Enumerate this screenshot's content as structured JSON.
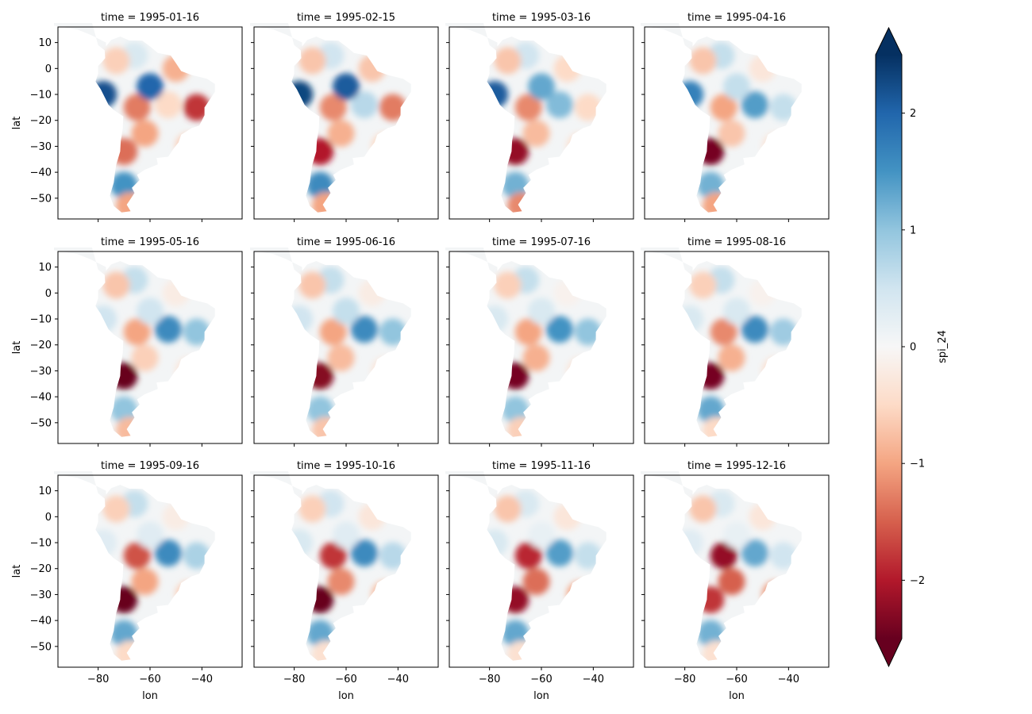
{
  "chart_data": {
    "type": "heatmap",
    "description_kind": "facet grid of gridded maps (3 rows x 4 columns)",
    "variable": "spi_24",
    "xlabel": "lon",
    "ylabel": "lat",
    "xticks": [
      -80,
      -60,
      -40
    ],
    "yticks": [
      10,
      0,
      -10,
      -20,
      -30,
      -40,
      -50
    ],
    "xlim": [
      -95.5,
      -24.5
    ],
    "ylim": [
      -58,
      16
    ],
    "colormap": "RdBu",
    "colorbar": {
      "label": "spi_24",
      "vmin": -2.5,
      "vmax": 2.5,
      "ticks": [
        2,
        1,
        0,
        -1,
        -2
      ],
      "tick_labels": [
        "2",
        "1",
        "0",
        "−1",
        "−2"
      ],
      "extend": "both",
      "placement": "right"
    },
    "panels": [
      {
        "title": "time = 1995-01-16"
      },
      {
        "title": "time = 1995-02-15"
      },
      {
        "title": "time = 1995-03-16"
      },
      {
        "title": "time = 1995-04-16"
      },
      {
        "title": "time = 1995-05-16"
      },
      {
        "title": "time = 1995-06-16"
      },
      {
        "title": "time = 1995-07-16"
      },
      {
        "title": "time = 1995-08-16"
      },
      {
        "title": "time = 1995-09-16"
      },
      {
        "title": "time = 1995-10-16"
      },
      {
        "title": "time = 1995-11-16"
      },
      {
        "title": "time = 1995-12-16"
      }
    ],
    "anomaly_features": [
      {
        "lon": -70,
        "lat": -32,
        "values": [
          -1.4,
          -2.0,
          -2.2,
          -2.4,
          -2.5,
          -2.3,
          -2.4,
          -2.4,
          -2.5,
          -2.6,
          -2.2,
          -1.8
        ]
      },
      {
        "lon": -65,
        "lat": -15,
        "values": [
          -1.3,
          -1.2,
          -1.2,
          -1.0,
          -1.0,
          -1.0,
          -1.0,
          -1.2,
          -1.6,
          -1.8,
          -1.9,
          -2.2
        ]
      },
      {
        "lon": -53,
        "lat": -14,
        "values": [
          -0.5,
          0.7,
          1.1,
          1.4,
          1.6,
          1.6,
          1.5,
          1.6,
          1.6,
          1.6,
          1.4,
          1.3
        ]
      },
      {
        "lon": -60,
        "lat": -7,
        "values": [
          2.0,
          2.1,
          1.3,
          0.6,
          0.5,
          0.6,
          0.4,
          0.4,
          0.3,
          0.3,
          0.2,
          0.2
        ]
      },
      {
        "lon": -78,
        "lat": -10,
        "values": [
          2.2,
          2.3,
          2.1,
          1.7,
          0.5,
          0.5,
          0.4,
          0.4,
          0.3,
          0.4,
          0.4,
          0.3
        ]
      },
      {
        "lon": -42,
        "lat": -15,
        "values": [
          -1.8,
          -1.3,
          -0.5,
          0.6,
          1.0,
          1.0,
          1.0,
          0.9,
          0.8,
          0.7,
          0.6,
          0.5
        ]
      },
      {
        "lon": -70,
        "lat": -45,
        "values": [
          1.5,
          1.6,
          1.2,
          1.2,
          1.0,
          1.0,
          1.0,
          1.3,
          1.3,
          1.3,
          1.3,
          1.2
        ]
      },
      {
        "lon": -45,
        "lat": -30,
        "values": [
          -0.6,
          -0.5,
          -0.4,
          -0.3,
          -0.3,
          -0.3,
          -0.3,
          -0.4,
          -0.6,
          -0.8,
          -1.0,
          -1.1
        ]
      },
      {
        "lon": -62,
        "lat": -25,
        "values": [
          -1.0,
          -0.9,
          -0.8,
          -0.7,
          -0.6,
          -0.8,
          -0.9,
          -0.9,
          -1.0,
          -1.2,
          -1.4,
          -1.5
        ]
      },
      {
        "lon": -66,
        "lat": 5,
        "values": [
          0.4,
          0.5,
          0.5,
          0.6,
          0.6,
          0.6,
          0.6,
          0.6,
          0.6,
          0.5,
          0.4,
          0.4
        ]
      },
      {
        "lon": -73,
        "lat": 3,
        "values": [
          -0.6,
          -0.7,
          -0.7,
          -0.7,
          -0.7,
          -0.7,
          -0.6,
          -0.6,
          -0.6,
          -0.6,
          -0.7,
          -0.7
        ]
      },
      {
        "lon": -68,
        "lat": -53,
        "values": [
          -1.0,
          -1.0,
          -1.2,
          -1.0,
          -0.8,
          -0.7,
          -0.6,
          -0.5,
          -0.5,
          -0.4,
          -0.4,
          -0.4
        ]
      },
      {
        "lon": -50,
        "lat": 0,
        "values": [
          -0.9,
          -0.7,
          -0.5,
          -0.3,
          -0.2,
          -0.2,
          -0.1,
          -0.1,
          -0.2,
          -0.3,
          -0.3,
          -0.3
        ]
      }
    ]
  }
}
